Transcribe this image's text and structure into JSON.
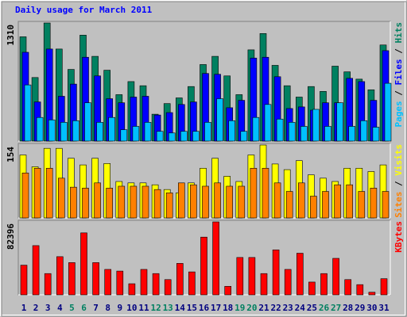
{
  "chart_data": [
    {
      "type": "bar",
      "title": "Daily usage for March 2011",
      "ylim": [
        0,
        1310
      ],
      "yticks": [
        1310
      ],
      "legend_separator": " / ",
      "series": [
        {
          "name": "Hits",
          "color": "#008060",
          "values": [
            1157,
            705,
            1310,
            1021,
            795,
            1175,
            940,
            786,
            515,
            660,
            614,
            298,
            416,
            479,
            605,
            849,
            940,
            723,
            515,
            1012,
            1193,
            840,
            614,
            488,
            605,
            551,
            831,
            768,
            687,
            569,
            1066
          ]
        },
        {
          "name": "Files",
          "color": "#0000ff",
          "values": [
            985,
            434,
            1021,
            497,
            632,
            930,
            723,
            470,
            425,
            488,
            497,
            289,
            316,
            406,
            434,
            750,
            741,
            370,
            452,
            921,
            930,
            714,
            361,
            379,
            343,
            425,
            425,
            696,
            660,
            452,
            1003
          ]
        },
        {
          "name": "Pages",
          "color": "#00c0ff",
          "values": [
            623,
            262,
            235,
            208,
            226,
            425,
            208,
            262,
            126,
            163,
            208,
            108,
            90,
            108,
            108,
            208,
            470,
            226,
            108,
            262,
            406,
            244,
            208,
            163,
            352,
            163,
            425,
            163,
            226,
            154,
            641
          ]
        }
      ]
    },
    {
      "type": "bar",
      "ylim": [
        0,
        154
      ],
      "yticks": [
        154
      ],
      "legend_separator": " / ",
      "series": [
        {
          "name": "Visits",
          "color": "#ffff00",
          "values": [
            133,
            108,
            147,
            147,
            126,
            112,
            126,
            115,
            77,
            74,
            74,
            70,
            60,
            53,
            74,
            105,
            126,
            88,
            77,
            133,
            154,
            114,
            102,
            121,
            91,
            84,
            77,
            105,
            105,
            98,
            112
          ]
        },
        {
          "name": "Sites",
          "color": "#ff8000",
          "values": [
            95,
            105,
            105,
            84,
            65,
            63,
            74,
            63,
            67,
            67,
            67,
            60,
            53,
            74,
            70,
            67,
            74,
            67,
            67,
            105,
            105,
            74,
            56,
            74,
            46,
            56,
            70,
            70,
            56,
            63,
            56
          ]
        }
      ]
    },
    {
      "type": "bar",
      "ylim": [
        0,
        82396
      ],
      "yticks": [
        82396
      ],
      "categories": [
        "1",
        "2",
        "3",
        "4",
        "5",
        "6",
        "7",
        "8",
        "9",
        "10",
        "11",
        "12",
        "13",
        "14",
        "15",
        "16",
        "17",
        "18",
        "19",
        "20",
        "21",
        "22",
        "23",
        "24",
        "25",
        "26",
        "27",
        "28",
        "29",
        "30",
        "31"
      ],
      "category_colors": [
        "#000080",
        "#000080",
        "#000080",
        "#000080",
        "#008060",
        "#008060",
        "#000080",
        "#000080",
        "#000080",
        "#000080",
        "#000080",
        "#008060",
        "#008060",
        "#000080",
        "#000080",
        "#000080",
        "#000080",
        "#000080",
        "#008060",
        "#008060",
        "#000080",
        "#000080",
        "#000080",
        "#000080",
        "#000080",
        "#008060",
        "#008060",
        "#000080",
        "#000080",
        "#000080",
        "#000080"
      ],
      "series": [
        {
          "name": "KBytes",
          "color": "#ff0000",
          "values": [
            33500,
            55600,
            24000,
            43100,
            36400,
            70000,
            36400,
            28700,
            26800,
            12500,
            28700,
            24000,
            17200,
            35500,
            25900,
            65200,
            82396,
            9600,
            42200,
            42200,
            24000,
            50800,
            28700,
            47000,
            14400,
            24000,
            41200,
            17200,
            11500,
            2900,
            18200
          ]
        }
      ]
    }
  ]
}
